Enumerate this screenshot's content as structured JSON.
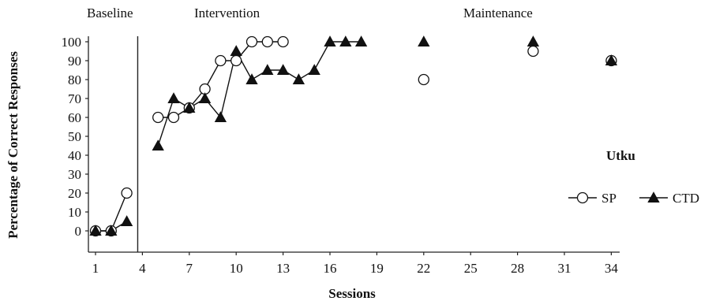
{
  "chart_data": {
    "type": "line",
    "title": "",
    "xlabel": "Sessions",
    "ylabel": "Percentage of Correct Responses",
    "xlim": [
      0.5,
      35
    ],
    "ylim": [
      0,
      100
    ],
    "x_ticks": [
      1,
      4,
      7,
      10,
      13,
      16,
      19,
      22,
      25,
      28,
      31,
      34
    ],
    "y_ticks": [
      0,
      10,
      20,
      30,
      40,
      50,
      60,
      70,
      80,
      90,
      100
    ],
    "phases": [
      {
        "label": "Baseline",
        "start": 1,
        "end": 3
      },
      {
        "label": "Intervention",
        "start": 5,
        "end": 18
      },
      {
        "label": "Maintenance",
        "start": 22,
        "end": 34
      }
    ],
    "phase_change_x": 3.7,
    "participant_label": "Utku",
    "legend_position": "right",
    "series": [
      {
        "name": "SP",
        "marker": "open-circle",
        "segments": [
          [
            [
              1,
              0
            ],
            [
              2,
              0
            ],
            [
              3,
              20
            ]
          ],
          [
            [
              5,
              60
            ],
            [
              6,
              60
            ],
            [
              7,
              65
            ],
            [
              8,
              75
            ],
            [
              9,
              90
            ],
            [
              10,
              90
            ],
            [
              11,
              100
            ],
            [
              12,
              100
            ],
            [
              13,
              100
            ]
          ],
          [
            [
              22,
              80
            ]
          ],
          [
            [
              29,
              95
            ]
          ],
          [
            [
              34,
              90
            ]
          ]
        ]
      },
      {
        "name": "CTD",
        "marker": "filled-triangle",
        "segments": [
          [
            [
              1,
              0
            ],
            [
              2,
              0
            ],
            [
              3,
              5
            ]
          ],
          [
            [
              5,
              45
            ],
            [
              6,
              70
            ],
            [
              7,
              65
            ],
            [
              8,
              70
            ],
            [
              9,
              60
            ],
            [
              10,
              95
            ],
            [
              11,
              80
            ],
            [
              12,
              85
            ],
            [
              13,
              85
            ],
            [
              14,
              80
            ],
            [
              15,
              85
            ],
            [
              16,
              100
            ],
            [
              17,
              100
            ],
            [
              18,
              100
            ]
          ],
          [
            [
              22,
              100
            ]
          ],
          [
            [
              29,
              100
            ]
          ],
          [
            [
              34,
              90
            ]
          ]
        ]
      }
    ]
  }
}
